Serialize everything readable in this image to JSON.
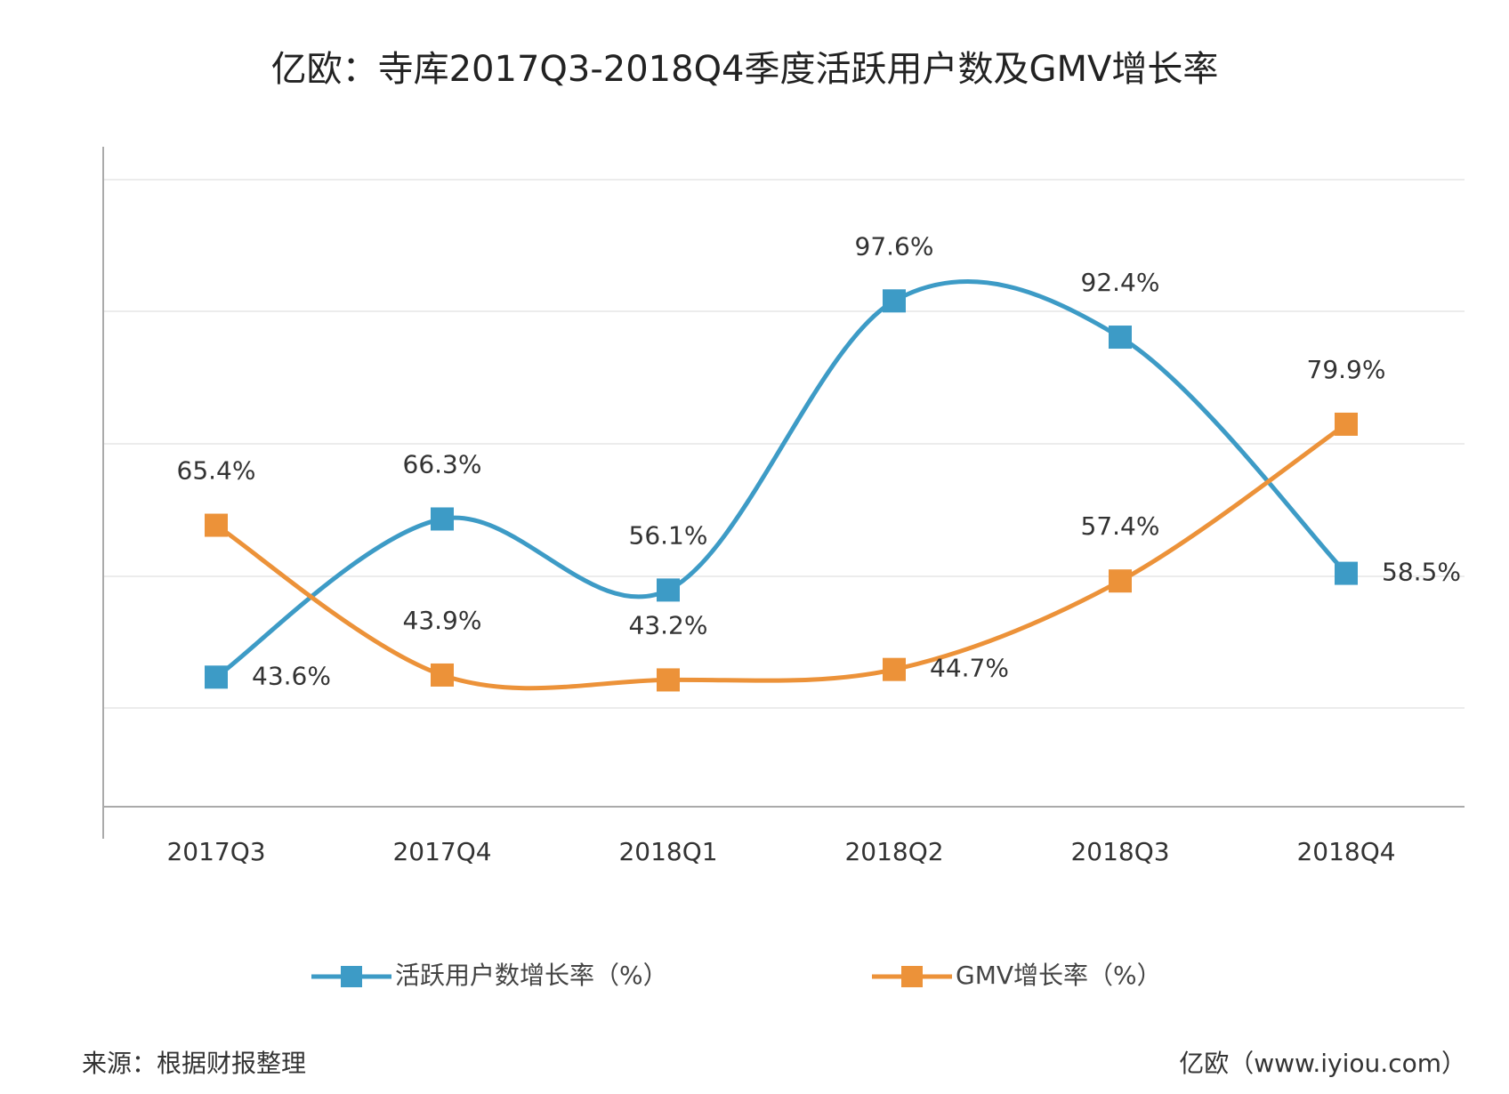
{
  "chart_data": {
    "type": "line",
    "title": "亿欧：寺库2017Q3-2018Q4季度活跃用户数及GMV增长率",
    "categories": [
      "2017Q3",
      "2017Q4",
      "2018Q1",
      "2018Q2",
      "2018Q3",
      "2018Q4"
    ],
    "series": [
      {
        "name": "活跃用户数增长率（%）",
        "color": "#3d9bc6",
        "values": [
          43.6,
          66.3,
          56.1,
          97.6,
          92.4,
          58.5
        ],
        "value_labels": [
          "43.6%",
          "66.3%",
          "56.1%",
          "97.6%",
          "92.4%",
          "58.5%"
        ]
      },
      {
        "name": "GMV增长率（%）",
        "color": "#ec9239",
        "values": [
          65.4,
          43.9,
          43.2,
          44.7,
          57.4,
          79.9
        ],
        "value_labels": [
          "65.4%",
          "43.9%",
          "43.2%",
          "44.7%",
          "57.4%",
          "79.9%"
        ]
      }
    ],
    "ylim": [
      25,
      115
    ],
    "smooth": true,
    "source": "来源：根据财报整理",
    "credit": "亿欧（www.iyiou.com）"
  }
}
